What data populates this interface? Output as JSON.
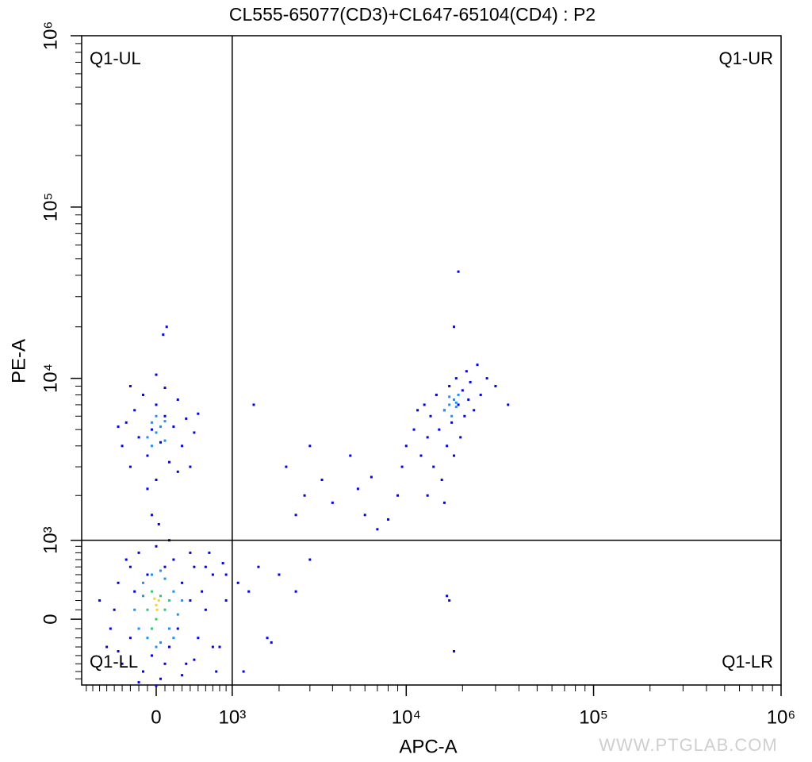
{
  "chart_data": {
    "type": "scatter",
    "title": "CL555-65077(CD3)+CL647-65104(CD4) : P2",
    "x_label": "APC-A",
    "y_label": "PE-A",
    "scale": "biexponential",
    "xlim": [
      -975,
      1000000
    ],
    "ylim": [
      -790,
      1000000
    ],
    "xticks": [
      0,
      {
        "value": 1000,
        "label": "10³"
      },
      {
        "value": 10000,
        "label": "10⁴"
      },
      {
        "value": 100000,
        "label": "10⁵"
      },
      {
        "value": 1000000,
        "label": "10⁶"
      }
    ],
    "yticks": [
      0,
      {
        "value": 1000,
        "label": "10³"
      },
      {
        "value": 10000,
        "label": "10⁴"
      },
      {
        "value": 100000,
        "label": "10⁵"
      },
      {
        "value": 1000000,
        "label": "10⁶"
      }
    ],
    "xminorticks": [
      -900,
      -800,
      -700,
      -600,
      -500,
      -400,
      -300,
      -200,
      -100,
      100,
      200,
      300,
      400,
      500,
      600,
      700,
      800,
      900,
      2000,
      3000,
      4000,
      5000,
      6000,
      7000,
      8000,
      9000,
      20000,
      30000,
      40000,
      50000,
      60000,
      70000,
      80000,
      90000,
      200000,
      300000,
      400000,
      500000,
      600000,
      700000,
      800000,
      900000
    ],
    "yminorticks": [
      -700,
      -600,
      -500,
      -400,
      -300,
      -200,
      -100,
      100,
      200,
      300,
      400,
      500,
      600,
      700,
      800,
      900,
      2000,
      3000,
      4000,
      5000,
      6000,
      7000,
      8000,
      9000,
      20000,
      30000,
      40000,
      50000,
      60000,
      70000,
      80000,
      90000,
      200000,
      300000,
      400000,
      500000,
      600000,
      700000,
      800000,
      900000
    ],
    "quadrant": {
      "x": 1000,
      "y": 1000
    },
    "annotations": [
      "Q1-UL",
      "Q1-UR",
      "Q1-LL",
      "Q1-LR"
    ],
    "watermark": "WWW.PTGLAB.COM",
    "series": [
      {
        "color": "#0000ff",
        "x": [
          -600,
          -500,
          -450,
          -400,
          -350,
          -300,
          -250,
          -200,
          -150,
          -100,
          -50,
          0,
          50,
          100,
          150,
          200,
          250,
          300,
          350,
          400,
          450,
          500,
          550,
          600,
          700,
          800,
          -700,
          -550,
          300,
          -200,
          0,
          150,
          650,
          900,
          750,
          -300,
          100,
          450,
          -450,
          850
        ],
        "y": [
          -300,
          100,
          400,
          -500,
          700,
          -200,
          300,
          800,
          -600,
          500,
          -400,
          900,
          -700,
          600,
          -300,
          700,
          -100,
          400,
          -500,
          200,
          600,
          -200,
          300,
          100,
          500,
          -300,
          200,
          -100,
          -650,
          -750,
          -800,
          1000,
          800,
          200,
          -600,
          600,
          -500,
          -450,
          -350,
          650
        ]
      },
      {
        "color": "#0000ff",
        "x": [
          -400,
          -350,
          -300,
          -250,
          -200,
          -150,
          -100,
          -50,
          0,
          0,
          50,
          100,
          150,
          200,
          250,
          300,
          350,
          400,
          450,
          500,
          -300,
          -100,
          100,
          250,
          -450,
          0,
          80,
          120,
          -50,
          30
        ],
        "y": [
          4000,
          5500,
          3000,
          6500,
          4500,
          8000,
          3500,
          5000,
          2500,
          7000,
          4200,
          6000,
          3200,
          5200,
          7500,
          4000,
          5800,
          3000,
          4800,
          6200,
          9000,
          2200,
          8800,
          2800,
          5200,
          10500,
          18000,
          20000,
          1500,
          1300
        ]
      },
      {
        "color": "#0000ff",
        "x": [
          11000,
          12000,
          12500,
          13000,
          13500,
          14000,
          14500,
          15000,
          15500,
          16000,
          16500,
          17000,
          17500,
          18000,
          18500,
          19000,
          19500,
          20000,
          20500,
          21000,
          21500,
          22000,
          23000,
          24000,
          25000,
          27000,
          30000,
          35000,
          18000,
          19000,
          10000,
          9500,
          13000,
          16000,
          11500
        ],
        "y": [
          5000,
          3500,
          7000,
          4500,
          6000,
          3000,
          8000,
          5000,
          2500,
          6500,
          4000,
          9000,
          5500,
          3500,
          10000,
          7000,
          4500,
          8500,
          6000,
          11000,
          7500,
          9500,
          6500,
          12000,
          8000,
          10000,
          9000,
          7000,
          20000,
          42000,
          4000,
          3000,
          2000,
          1800,
          6500
        ]
      },
      {
        "color": "#0000ff",
        "x": [
          400,
          600,
          700,
          900,
          1100,
          1300,
          1500,
          1700,
          2000,
          2500,
          3000,
          1200,
          1800,
          2200,
          2800,
          3500,
          4000,
          5000,
          6000,
          7000,
          8000,
          9000,
          5500,
          1400,
          6500,
          17000,
          18000,
          16500,
          3000,
          2500
        ],
        "y": [
          800,
          600,
          -300,
          500,
          400,
          300,
          600,
          -200,
          500,
          300,
          700,
          -600,
          -250,
          3000,
          2000,
          2500,
          1800,
          3500,
          1500,
          1200,
          1400,
          2000,
          2200,
          7000,
          2600,
          200,
          -350,
          250,
          4000,
          1500
        ]
      },
      {
        "color": "#1e90ff",
        "x": [
          -250,
          -150,
          -100,
          -50,
          50,
          100,
          150,
          200,
          250,
          -200,
          0,
          50,
          -150,
          200,
          300,
          -100,
          -50,
          0,
          50,
          100,
          0,
          -50,
          100,
          16000,
          17000,
          17500,
          18000,
          18500,
          19000,
          17000,
          18500
        ],
        "y": [
          100,
          400,
          -200,
          500,
          -250,
          450,
          -100,
          300,
          50,
          -100,
          -300,
          550,
          250,
          -200,
          200,
          4500,
          5500,
          4800,
          5200,
          4300,
          6000,
          4000,
          5600,
          6500,
          7000,
          6000,
          7500,
          6800,
          8000,
          7800,
          7200
        ]
      },
      {
        "color": "#2ecc71",
        "x": [
          -100,
          -50,
          0,
          50,
          100,
          -50,
          150
        ],
        "y": [
          100,
          300,
          0,
          250,
          100,
          -100,
          200
        ]
      },
      {
        "color": "#ffd800",
        "x": [
          0,
          30,
          -20,
          10
        ],
        "y": [
          150,
          200,
          220,
          100
        ]
      }
    ]
  }
}
